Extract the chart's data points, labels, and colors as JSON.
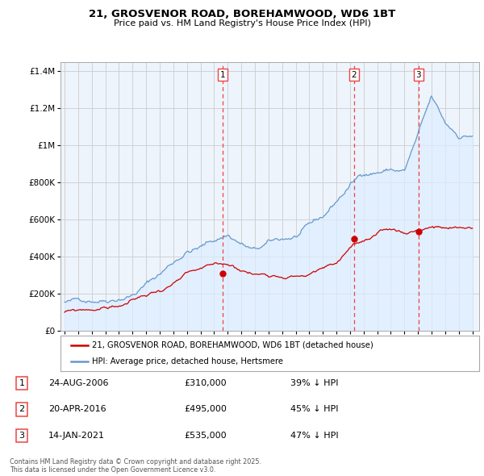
{
  "title": "21, GROSVENOR ROAD, BOREHAMWOOD, WD6 1BT",
  "subtitle": "Price paid vs. HM Land Registry's House Price Index (HPI)",
  "legend_label_red": "21, GROSVENOR ROAD, BOREHAMWOOD, WD6 1BT (detached house)",
  "legend_label_blue": "HPI: Average price, detached house, Hertsmere",
  "footer": "Contains HM Land Registry data © Crown copyright and database right 2025.\nThis data is licensed under the Open Government Licence v3.0.",
  "sale_markers": [
    {
      "num": 1,
      "date": "24-AUG-2006",
      "price": "£310,000",
      "note": "39% ↓ HPI",
      "x_year": 2006.65
    },
    {
      "num": 2,
      "date": "20-APR-2016",
      "price": "£495,000",
      "note": "45% ↓ HPI",
      "x_year": 2016.3
    },
    {
      "num": 3,
      "date": "14-JAN-2021",
      "price": "£535,000",
      "note": "47% ↓ HPI",
      "x_year": 2021.04
    }
  ],
  "red_color": "#cc0000",
  "blue_color": "#6699cc",
  "blue_fill_color": "#ddeeff",
  "vline_color": "#ee4444",
  "background_color": "#ffffff",
  "grid_color": "#cccccc",
  "ylim": [
    0,
    1450000
  ],
  "xlim_start": 1994.7,
  "xlim_end": 2025.5
}
